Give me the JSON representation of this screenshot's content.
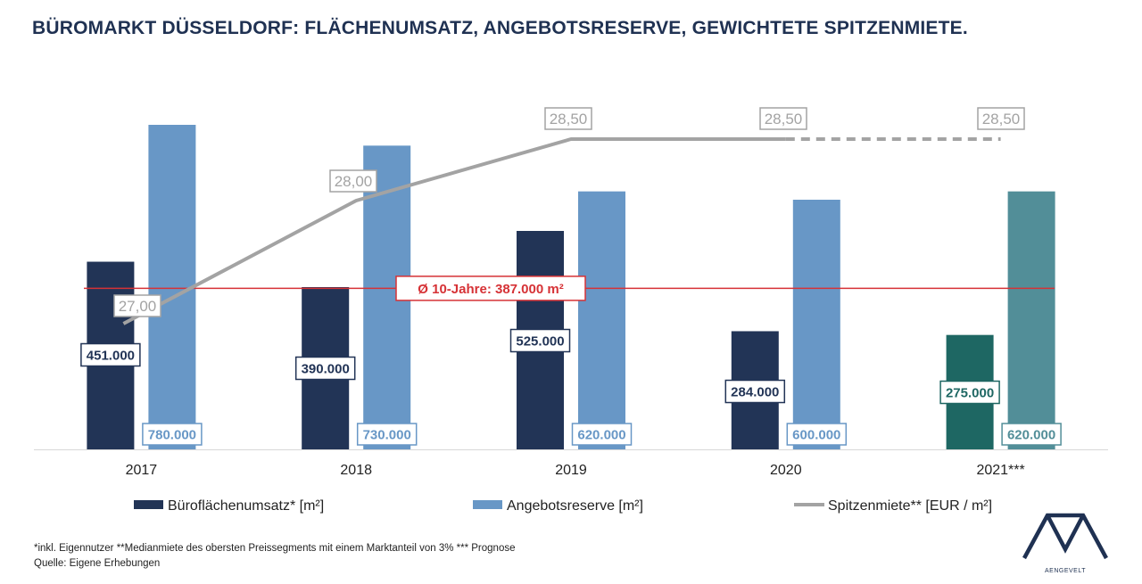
{
  "title": "BÜROMARKT DÜSSELDORF: FLÄCHENUMSATZ, ANGEBOTSRESERVE, GEWICHTETE SPITZENMIETE.",
  "footnotes": {
    "line1": "*inkl. Eigennutzer **Medianmiete des obersten Preissegments mit einem Marktanteil von 3% *** Prognose",
    "line2": "Quelle: Eigene Erhebungen"
  },
  "logo": {
    "text": "AENGEVELT",
    "icon": "aengevelt-logo-icon"
  },
  "colors": {
    "umsatz": "#223456",
    "umsatz_forecast": "#1e6763",
    "reserve": "#6897c6",
    "reserve_forecast": "#528e98",
    "miete": "#a3a3a3",
    "average": "#d63236",
    "title": "#1f3152"
  },
  "chart_data": {
    "type": "bar",
    "categories": [
      "2017",
      "2018",
      "2019",
      "2020",
      "2021***"
    ],
    "series": [
      {
        "name": "Büroflächenumsatz* [m²]",
        "values": [
          451000,
          390000,
          525000,
          284000,
          275000
        ],
        "labels": [
          "451.000",
          "390.000",
          "525.000",
          "284.000",
          "275.000"
        ]
      },
      {
        "name": "Angebotsreserve [m²]",
        "values": [
          780000,
          730000,
          620000,
          600000,
          620000
        ],
        "labels": [
          "780.000",
          "730.000",
          "620.000",
          "600.000",
          "620.000"
        ]
      },
      {
        "name": "Spitzenmiete** [EUR / m²]",
        "type": "line",
        "axis": "secondary",
        "values": [
          27.0,
          28.0,
          28.5,
          28.5,
          28.5
        ],
        "labels": [
          "27,00",
          "28,00",
          "28,50",
          "28,50",
          "28,50"
        ],
        "dashed_from": "2020"
      }
    ],
    "average_line": {
      "value": 387000,
      "label": "Ø 10-Jahre: 387.000 m²"
    },
    "forecast_category": "2021***",
    "legend_position": "bottom",
    "grid": false
  }
}
